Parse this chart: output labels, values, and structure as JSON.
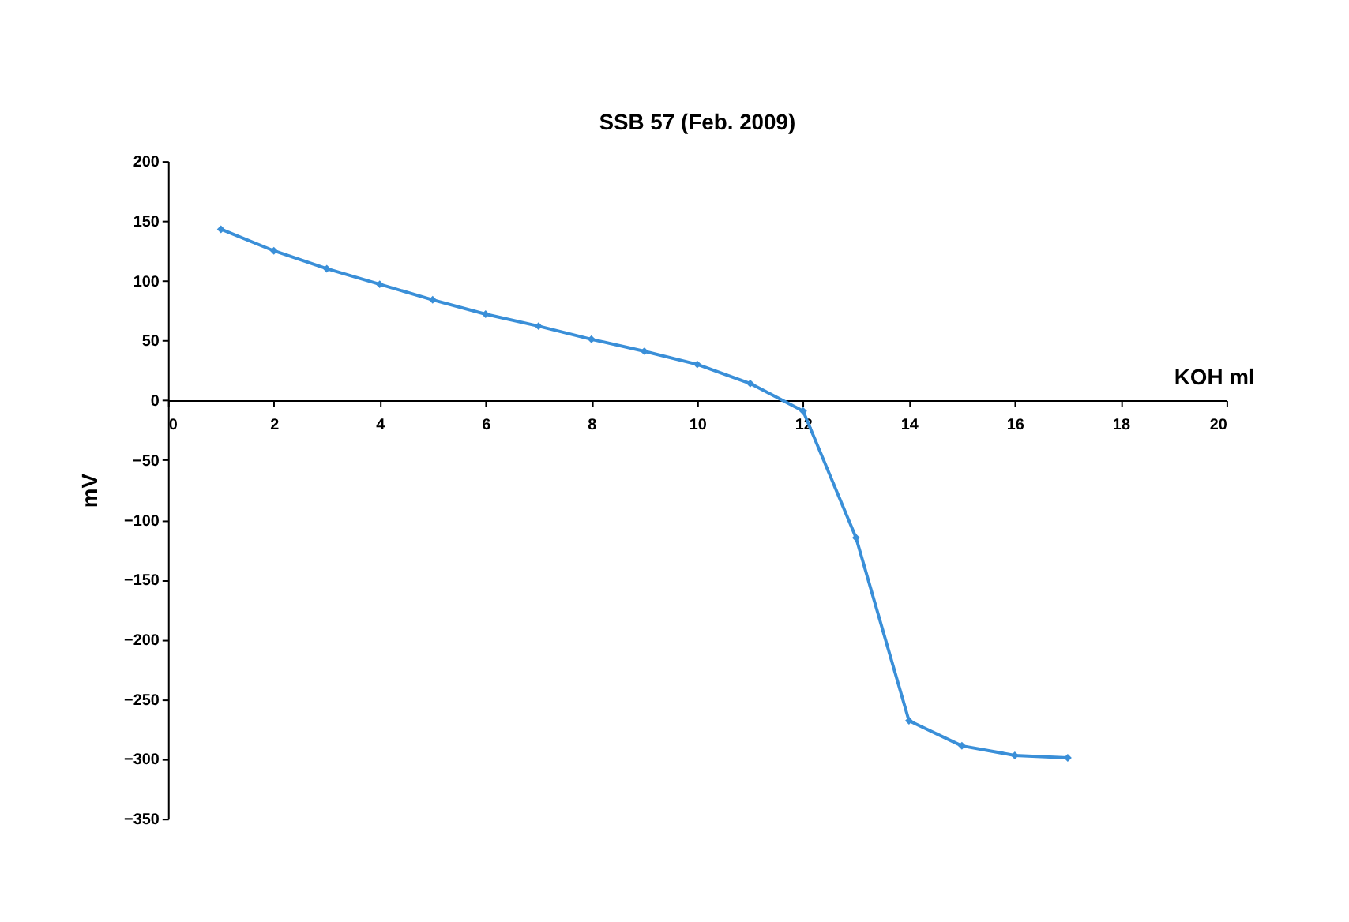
{
  "chart_data": {
    "type": "line",
    "title": "SSB 57 (Feb. 2009)",
    "xlabel": "KOH ml",
    "ylabel": "mV",
    "x": [
      1,
      2,
      3,
      4,
      5,
      6,
      7,
      8,
      9,
      10,
      11,
      12,
      13,
      14,
      15,
      16,
      17
    ],
    "series": [
      {
        "color": "#3a8fd8",
        "values": [
          143,
          125,
          110,
          97,
          84,
          72,
          62,
          51,
          41,
          30,
          14,
          -9,
          -115,
          -268,
          -289,
          -297,
          -299
        ]
      }
    ],
    "xlim": [
      0,
      20
    ],
    "xticks": [
      0,
      2,
      4,
      6,
      8,
      10,
      12,
      14,
      16,
      18,
      20
    ],
    "ylim": [
      -350,
      200
    ],
    "yticks": [
      -350,
      -300,
      -250,
      -200,
      -150,
      -100,
      -50,
      0,
      50,
      100,
      150,
      200
    ],
    "grid": false,
    "marker": "diamond",
    "line_style": "solid"
  }
}
